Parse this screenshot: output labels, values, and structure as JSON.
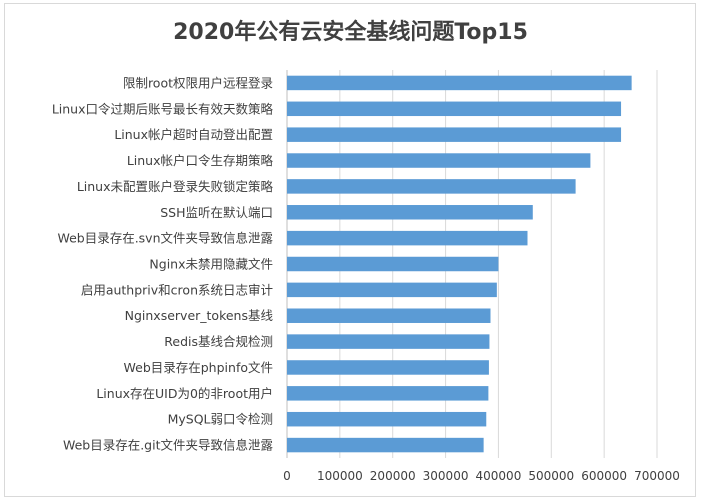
{
  "chart_data": {
    "type": "bar",
    "orientation": "horizontal",
    "title": "2020年公有云安全基线问题Top15",
    "categories": [
      "限制root权限用户远程登录",
      "Linux口令过期后账号最长有效天数策略",
      "Linux帐户超时自动登出配置",
      "Linux帐户口令生存期策略",
      "Linux未配置账户登录失败锁定策略",
      "SSH监听在默认端口",
      "Web目录存在.svn文件夹导致信息泄露",
      "Nginx未禁用隐藏文件",
      "启用authpriv和cron系统日志审计",
      "Nginxserver_tokens基线",
      "Redis基线合规检测",
      "Web目录存在phpinfo文件",
      "Linux存在UID为0的非root用户",
      "MySQL弱口令检测",
      "Web目录存在.git文件夹导致信息泄露"
    ],
    "values": [
      652000,
      632000,
      632000,
      574000,
      546000,
      465000,
      455000,
      400000,
      397000,
      385000,
      383000,
      382000,
      381000,
      377000,
      372000
    ],
    "xlim": [
      0,
      700000
    ],
    "xticks": [
      "0",
      "100000",
      "200000",
      "300000",
      "400000",
      "500000",
      "600000",
      "700000"
    ],
    "bar_color": "#5b9bd5",
    "grid": true
  }
}
